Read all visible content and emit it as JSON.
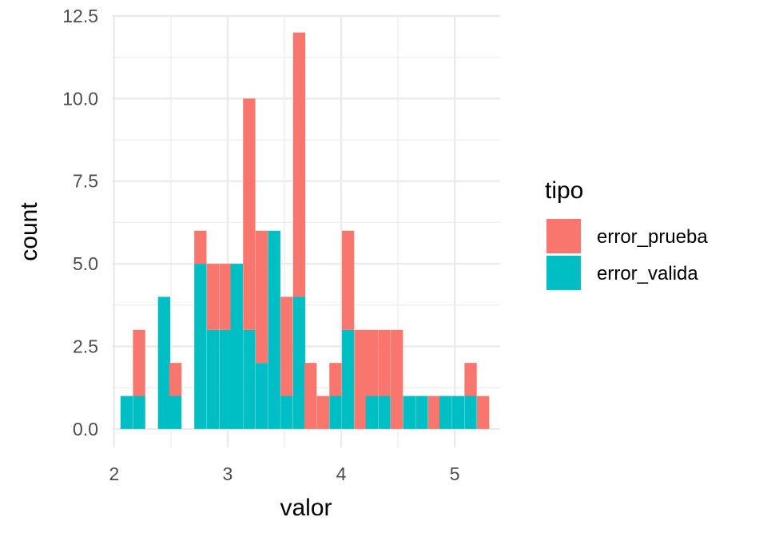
{
  "chart_data": {
    "type": "bar",
    "subtype": "stacked-histogram",
    "title": "",
    "xlabel": "valor",
    "ylabel": "count",
    "xlim": [
      1.98,
      5.4
    ],
    "ylim": [
      -0.56,
      12.5
    ],
    "x_ticks": [
      {
        "value": 2,
        "label": "2"
      },
      {
        "value": 3,
        "label": "3"
      },
      {
        "value": 4,
        "label": "4"
      },
      {
        "value": 5,
        "label": "5"
      }
    ],
    "y_ticks": [
      {
        "value": 0,
        "label": "0.0"
      },
      {
        "value": 2.5,
        "label": "2.5"
      },
      {
        "value": 5,
        "label": "5.0"
      },
      {
        "value": 7.5,
        "label": "7.5"
      },
      {
        "value": 10,
        "label": "10.0"
      },
      {
        "value": 12.5,
        "label": "12.5"
      }
    ],
    "grid": true,
    "legend_position": "right",
    "bin_width": 0.108,
    "bin_centers": [
      2.11,
      2.22,
      2.33,
      2.44,
      2.54,
      2.65,
      2.76,
      2.87,
      2.98,
      3.08,
      3.19,
      3.3,
      3.41,
      3.52,
      3.63,
      3.73,
      3.84,
      3.95,
      4.06,
      4.17,
      4.27,
      4.38,
      4.49,
      4.6,
      4.71,
      4.82,
      4.92,
      5.03,
      5.14,
      5.25
    ],
    "series": [
      {
        "name": "error_prueba",
        "color": "#F8766D",
        "values": [
          0,
          2,
          0,
          0,
          1,
          0,
          1,
          2,
          2,
          0,
          7,
          4,
          0,
          3,
          8,
          2,
          1,
          1,
          3,
          3,
          2,
          2,
          3,
          0,
          0,
          1,
          0,
          0,
          1,
          1
        ]
      },
      {
        "name": "error_valida",
        "color": "#00BFC4",
        "values": [
          1,
          1,
          0,
          4,
          1,
          0,
          5,
          3,
          3,
          5,
          3,
          2,
          6,
          1,
          4,
          0,
          0,
          1,
          3,
          0,
          1,
          1,
          0,
          1,
          1,
          0,
          1,
          1,
          1,
          0
        ]
      }
    ],
    "legend": {
      "title": "tipo",
      "entries": [
        "error_prueba",
        "error_valida"
      ]
    }
  }
}
